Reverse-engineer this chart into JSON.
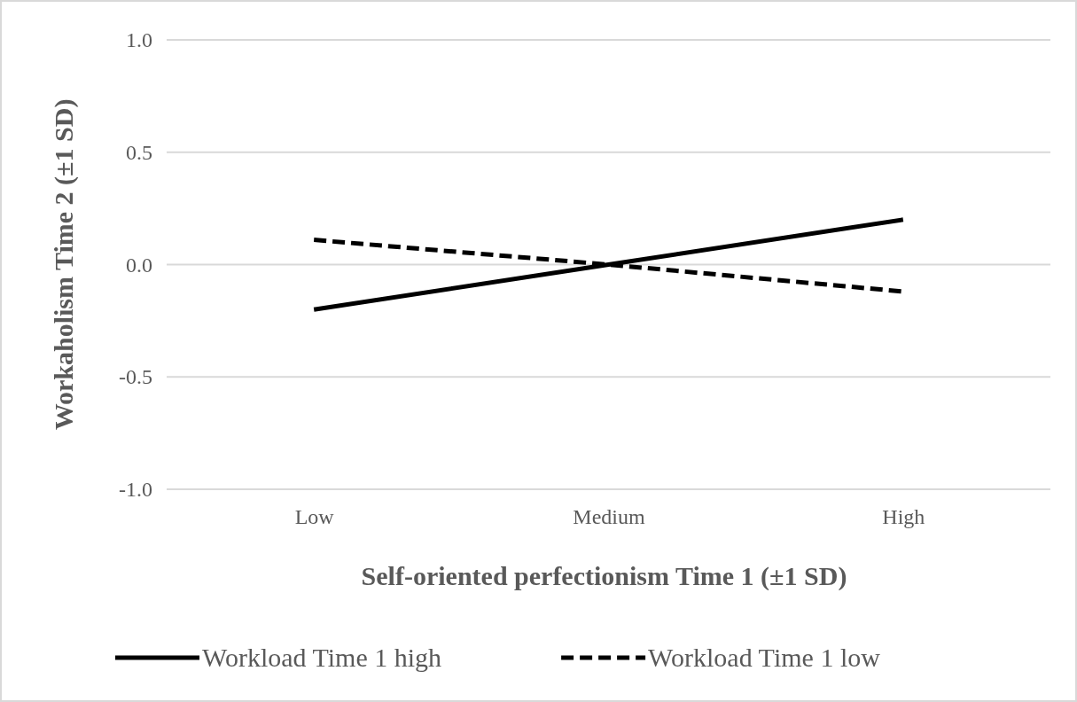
{
  "chart_data": {
    "type": "line",
    "xlabel": "Self-oriented perfectionism Time 1 (±1 SD)",
    "ylabel": "Workaholism Time 2 (±1 SD)",
    "categories": [
      "Low",
      "Medium",
      "High"
    ],
    "series": [
      {
        "name": "Workload Time 1 high",
        "color": "#000000",
        "line_style": "solid",
        "values": [
          -0.2,
          0,
          0.2
        ]
      },
      {
        "name": "Workload Time 1 low",
        "color": "#000000",
        "line_style": "dashed",
        "values": [
          0.11,
          0,
          -0.12
        ]
      }
    ],
    "ylim": [
      -1,
      1
    ],
    "yticks": [
      {
        "value": -1,
        "label": "-1.0"
      },
      {
        "value": -0.5,
        "label": "-0.5"
      },
      {
        "value": 0,
        "label": "0.0"
      },
      {
        "value": 0.5,
        "label": "0.5"
      },
      {
        "value": 1,
        "label": "1.0"
      }
    ],
    "grid": "y",
    "legend": "bottom",
    "marker": "none"
  }
}
